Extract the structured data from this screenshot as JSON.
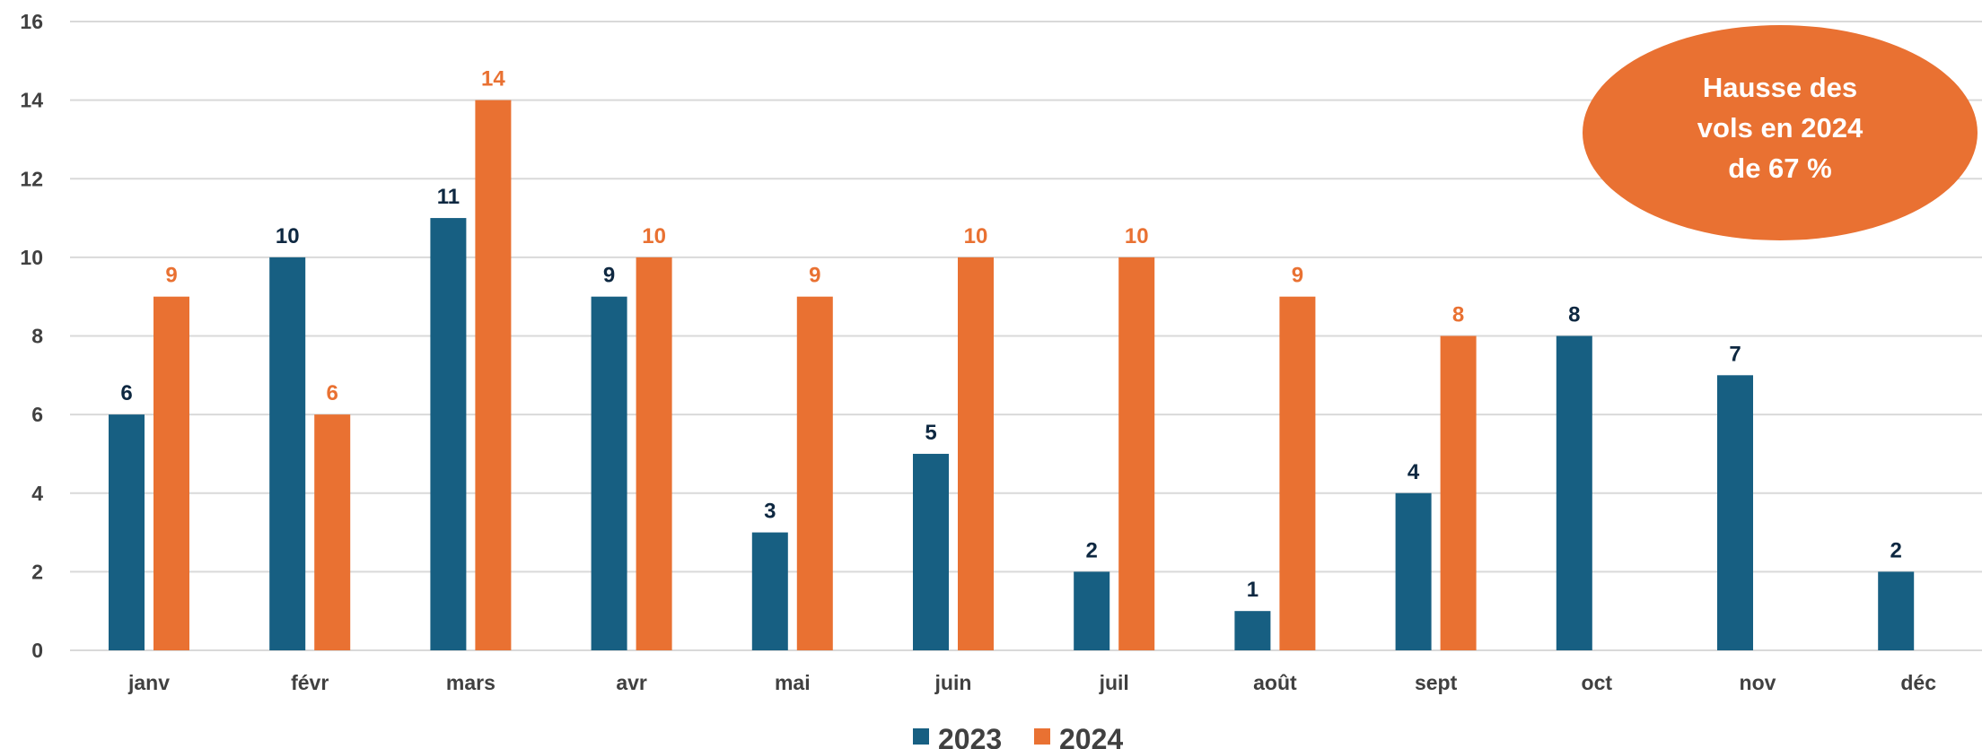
{
  "chart_data": {
    "type": "bar",
    "categories": [
      "janv",
      "févr",
      "mars",
      "avr",
      "mai",
      "juin",
      "juil",
      "août",
      "sept",
      "oct",
      "nov",
      "déc"
    ],
    "series": [
      {
        "name": "2023",
        "color": "#175F82",
        "label_color": "#0E2841",
        "values": [
          6,
          10,
          11,
          9,
          3,
          5,
          2,
          1,
          4,
          8,
          7,
          2
        ]
      },
      {
        "name": "2024",
        "color": "#E97132",
        "label_color": "#E97132",
        "values": [
          9,
          6,
          14,
          10,
          9,
          10,
          10,
          9,
          8,
          null,
          null,
          null
        ]
      }
    ],
    "ylim": [
      0,
      16
    ],
    "yticks": [
      0,
      2,
      4,
      6,
      8,
      10,
      12,
      14,
      16
    ],
    "grid": true,
    "legend": "bottom",
    "annotation": {
      "lines": [
        "Hausse des",
        "vols en 2024",
        "de 67 %"
      ],
      "color": "#E97132"
    }
  }
}
